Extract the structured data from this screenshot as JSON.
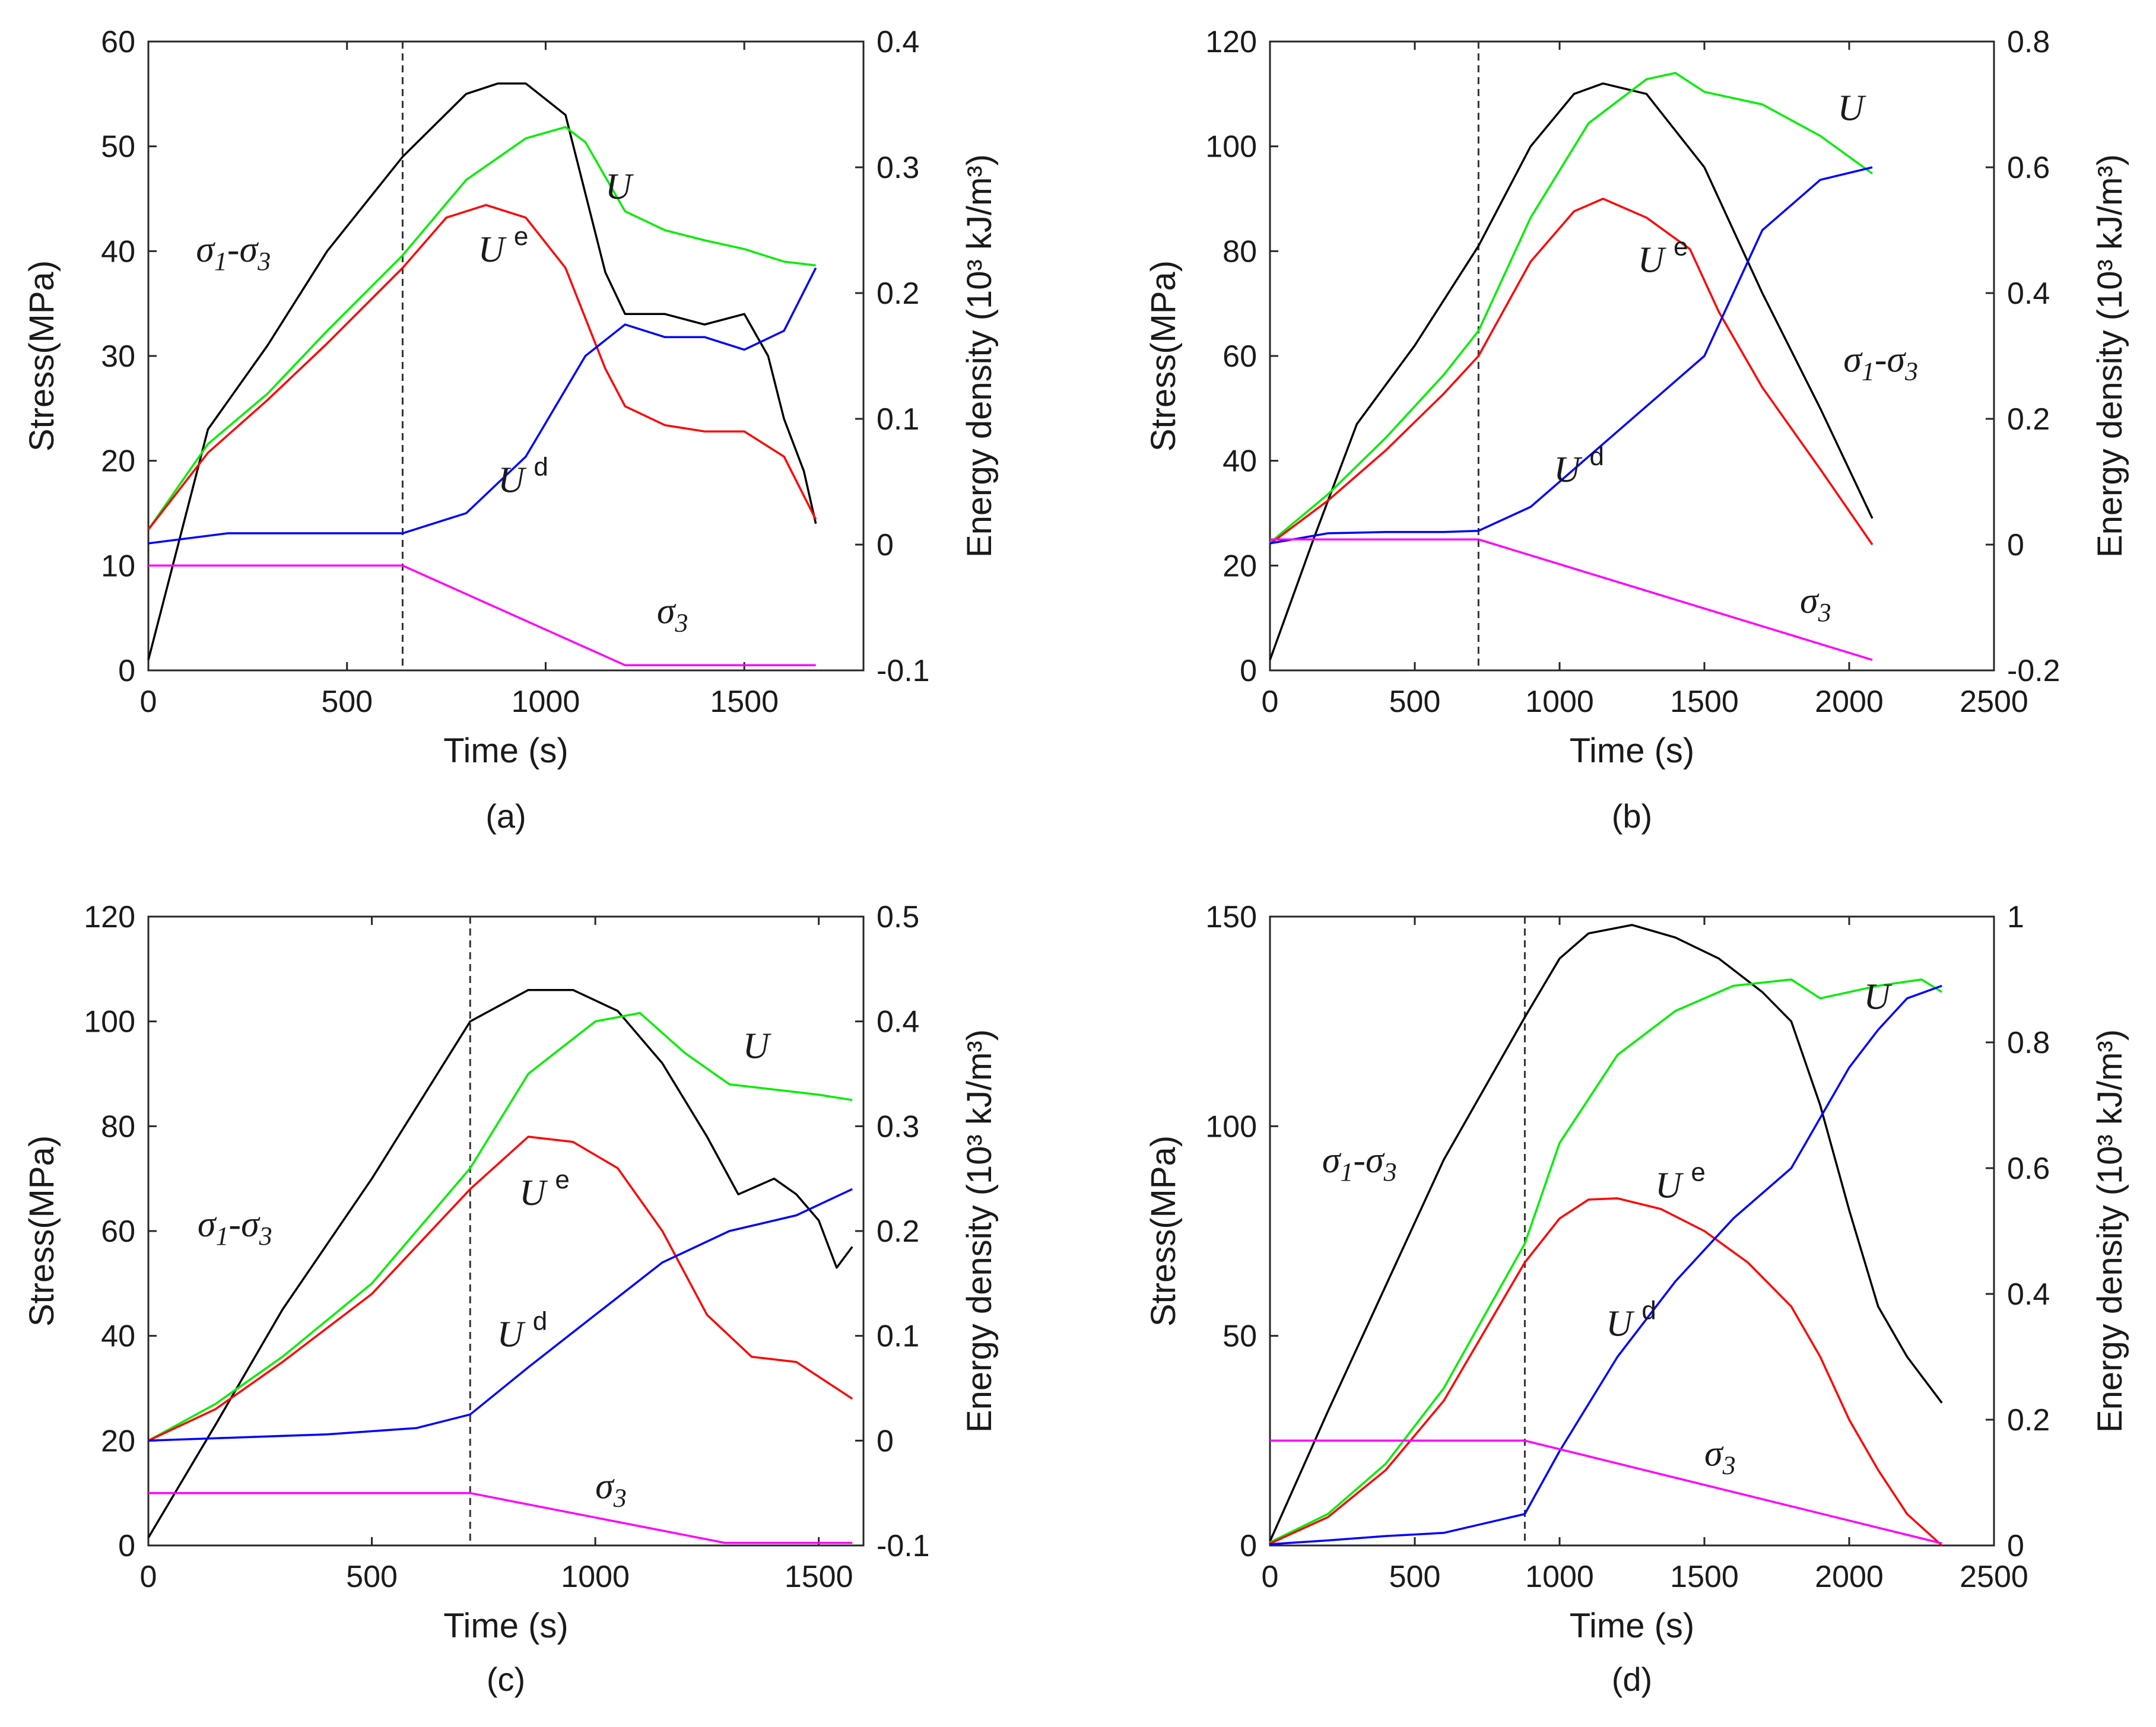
{
  "colors": {
    "stress": "#000000",
    "U": "#00ee00",
    "Ue": "#ff0000",
    "Ud": "#0000ff",
    "sigma3": "#ff00ff",
    "dashed": "#333333"
  },
  "chart_data": [
    {
      "type": "line",
      "label": "(a)",
      "xlabel": "Time (s)",
      "ylabel_left": "Stress(MPa)",
      "ylabel_right": "Energy density (10³ kJ/m³)",
      "xlim": [
        0,
        1800
      ],
      "xticks": [
        0,
        500,
        1000,
        1500
      ],
      "ylim_left": [
        0,
        60
      ],
      "yticks_left": [
        0,
        10,
        20,
        30,
        40,
        50,
        60
      ],
      "ylim_right": [
        -0.1,
        0.4
      ],
      "yticks_right": [
        "-0.1",
        "0",
        "0.1",
        "0.2",
        "0.3",
        "0.4"
      ],
      "vline_x": 640,
      "annotations": [
        {
          "name": "U",
          "base": "U",
          "sup": "",
          "x": 1150,
          "y": 45
        },
        {
          "name": "Ue",
          "base": "U",
          "sup": "e",
          "x": 830,
          "y": 39
        },
        {
          "name": "Ud",
          "base": "U",
          "sup": "d",
          "x": 880,
          "y": 17
        },
        {
          "name": "sigma1-sigma3",
          "base": "σ",
          "sub": "1",
          "mid": "-σ",
          "sub2": "3",
          "x": 120,
          "y": 39
        },
        {
          "name": "sigma3",
          "base": "σ",
          "sub": "3",
          "x": 1280,
          "y": 4.5
        }
      ],
      "series": [
        {
          "name": "σ1-σ3",
          "axis": "left",
          "color_key": "stress",
          "x": [
            0,
            150,
            300,
            450,
            640,
            800,
            880,
            950,
            1050,
            1150,
            1200,
            1300,
            1400,
            1500,
            1560,
            1600,
            1650,
            1680
          ],
          "y": [
            1,
            23,
            31,
            40,
            49,
            55,
            56,
            56,
            53,
            38,
            34,
            34,
            33,
            34,
            30,
            24,
            19,
            14
          ]
        },
        {
          "name": "U",
          "axis": "right",
          "color_key": "U",
          "x": [
            0,
            150,
            300,
            450,
            640,
            800,
            950,
            1050,
            1100,
            1200,
            1300,
            1400,
            1500,
            1600,
            1680
          ],
          "y": [
            0.012,
            0.08,
            0.12,
            0.17,
            0.23,
            0.29,
            0.323,
            0.332,
            0.32,
            0.265,
            0.25,
            0.242,
            0.235,
            0.225,
            0.222
          ]
        },
        {
          "name": "Ue",
          "axis": "right",
          "color_key": "Ue",
          "x": [
            0,
            150,
            300,
            450,
            640,
            750,
            850,
            950,
            1050,
            1150,
            1200,
            1300,
            1400,
            1500,
            1600,
            1680
          ],
          "y": [
            0.012,
            0.073,
            0.115,
            0.16,
            0.22,
            0.26,
            0.27,
            0.26,
            0.22,
            0.14,
            0.11,
            0.095,
            0.09,
            0.09,
            0.07,
            0.02
          ]
        },
        {
          "name": "Ud",
          "axis": "right",
          "color_key": "Ud",
          "x": [
            0,
            200,
            400,
            640,
            800,
            950,
            1100,
            1200,
            1300,
            1400,
            1500,
            1600,
            1680
          ],
          "y": [
            0.001,
            0.009,
            0.009,
            0.009,
            0.025,
            0.07,
            0.15,
            0.175,
            0.165,
            0.165,
            0.155,
            0.17,
            0.22
          ]
        },
        {
          "name": "σ3",
          "axis": "left",
          "color_key": "sigma3",
          "x": [
            0,
            640,
            1200,
            1680
          ],
          "y": [
            10,
            10,
            0.5,
            0.5
          ]
        }
      ]
    },
    {
      "type": "line",
      "label": "(b)",
      "xlabel": "Time (s)",
      "ylabel_left": "Stress(MPa)",
      "ylabel_right": "Energy density (10³ kJ/m³)",
      "xlim": [
        0,
        2500
      ],
      "xticks": [
        0,
        500,
        1000,
        1500,
        2000,
        2500
      ],
      "ylim_left": [
        0,
        120
      ],
      "yticks_left": [
        0,
        20,
        40,
        60,
        80,
        100,
        120
      ],
      "ylim_right": [
        -0.2,
        0.8
      ],
      "yticks_right": [
        "-0.2",
        "0",
        "0.2",
        "0.4",
        "0.6",
        "0.8"
      ],
      "vline_x": 720,
      "annotations": [
        {
          "name": "U",
          "base": "U",
          "sup": "",
          "x": 1960,
          "y": 105
        },
        {
          "name": "Ue",
          "base": "U",
          "sup": "e",
          "x": 1270,
          "y": 76
        },
        {
          "name": "Ud",
          "base": "U",
          "sup": "d",
          "x": 980,
          "y": 36
        },
        {
          "name": "sigma1-sigma3",
          "base": "σ",
          "sub": "1",
          "mid": "-σ",
          "sub2": "3",
          "x": 1980,
          "y": 57
        },
        {
          "name": "sigma3",
          "base": "σ",
          "sub": "3",
          "x": 1830,
          "y": 11
        }
      ],
      "series": [
        {
          "name": "σ1-σ3",
          "axis": "left",
          "color_key": "stress",
          "x": [
            0,
            150,
            300,
            500,
            720,
            900,
            1050,
            1150,
            1300,
            1500,
            1700,
            1900,
            2080
          ],
          "y": [
            2,
            25,
            47,
            62,
            81,
            100,
            110,
            112,
            110,
            96,
            72,
            50,
            29
          ]
        },
        {
          "name": "U",
          "axis": "right",
          "color_key": "U",
          "x": [
            0,
            200,
            400,
            600,
            720,
            900,
            1100,
            1300,
            1400,
            1500,
            1700,
            1900,
            2080
          ],
          "y": [
            0.003,
            0.08,
            0.17,
            0.27,
            0.34,
            0.52,
            0.67,
            0.74,
            0.75,
            0.72,
            0.7,
            0.65,
            0.59
          ]
        },
        {
          "name": "Ue",
          "axis": "right",
          "color_key": "Ue",
          "x": [
            0,
            200,
            400,
            600,
            720,
            900,
            1050,
            1150,
            1300,
            1450,
            1550,
            1700,
            1900,
            2080
          ],
          "y": [
            0.001,
            0.07,
            0.15,
            0.24,
            0.3,
            0.45,
            0.53,
            0.55,
            0.52,
            0.47,
            0.37,
            0.25,
            0.12,
            0.0
          ]
        },
        {
          "name": "Ud",
          "axis": "right",
          "color_key": "Ud",
          "x": [
            0,
            200,
            400,
            600,
            720,
            900,
            1100,
            1300,
            1500,
            1600,
            1700,
            1900,
            2080
          ],
          "y": [
            0.002,
            0.018,
            0.02,
            0.02,
            0.022,
            0.06,
            0.14,
            0.22,
            0.3,
            0.4,
            0.5,
            0.58,
            0.6
          ]
        },
        {
          "name": "σ3",
          "axis": "left",
          "color_key": "sigma3",
          "x": [
            0,
            720,
            2080
          ],
          "y": [
            25,
            25,
            2
          ]
        }
      ]
    },
    {
      "type": "line",
      "label": "(c)",
      "xlabel": "Time (s)",
      "ylabel_left": "Stress(MPa)",
      "ylabel_right": "Energy density (10³ kJ/m³)",
      "xlim": [
        0,
        1600
      ],
      "xticks": [
        0,
        500,
        1000,
        1500
      ],
      "ylim_left": [
        0,
        120
      ],
      "yticks_left": [
        0,
        20,
        40,
        60,
        80,
        100,
        120
      ],
      "ylim_right": [
        -0.1,
        0.5
      ],
      "yticks_right": [
        "-0.1",
        "0",
        "0.1",
        "0.2",
        "0.3",
        "0.4",
        "0.5"
      ],
      "vline_x": 720,
      "annotations": [
        {
          "name": "U",
          "base": "U",
          "sup": "",
          "x": 1330,
          "y": 93
        },
        {
          "name": "Ue",
          "base": "U",
          "sup": "e",
          "x": 830,
          "y": 65
        },
        {
          "name": "Ud",
          "base": "U",
          "sup": "d",
          "x": 780,
          "y": 38
        },
        {
          "name": "sigma1-sigma3",
          "base": "σ",
          "sub": "1",
          "mid": "-σ",
          "sub2": "3",
          "x": 110,
          "y": 59
        },
        {
          "name": "sigma3",
          "base": "σ",
          "sub": "3",
          "x": 1000,
          "y": 9
        }
      ],
      "series": [
        {
          "name": "σ1-σ3",
          "axis": "left",
          "color_key": "stress",
          "x": [
            0,
            150,
            300,
            500,
            720,
            850,
            950,
            1050,
            1150,
            1250,
            1320,
            1400,
            1450,
            1500,
            1540,
            1575
          ],
          "y": [
            1.5,
            23,
            45,
            70,
            100,
            106,
            106,
            102,
            92,
            78,
            67,
            70,
            67,
            62,
            53,
            57
          ]
        },
        {
          "name": "U",
          "axis": "right",
          "color_key": "U",
          "x": [
            0,
            150,
            300,
            500,
            720,
            850,
            1000,
            1100,
            1200,
            1300,
            1400,
            1500,
            1575
          ],
          "y": [
            0,
            0.035,
            0.08,
            0.15,
            0.26,
            0.35,
            0.4,
            0.408,
            0.37,
            0.34,
            0.335,
            0.33,
            0.325
          ]
        },
        {
          "name": "Ue",
          "axis": "right",
          "color_key": "Ue",
          "x": [
            0,
            150,
            300,
            500,
            720,
            850,
            950,
            1050,
            1150,
            1250,
            1350,
            1450,
            1575
          ],
          "y": [
            0,
            0.03,
            0.075,
            0.14,
            0.24,
            0.29,
            0.285,
            0.26,
            0.2,
            0.12,
            0.08,
            0.075,
            0.04
          ]
        },
        {
          "name": "Ud",
          "axis": "right",
          "color_key": "Ud",
          "x": [
            0,
            200,
            400,
            600,
            720,
            850,
            1000,
            1150,
            1300,
            1450,
            1575
          ],
          "y": [
            0,
            0.003,
            0.006,
            0.012,
            0.025,
            0.07,
            0.12,
            0.17,
            0.2,
            0.215,
            0.24
          ]
        },
        {
          "name": "σ3",
          "axis": "left",
          "color_key": "sigma3",
          "x": [
            0,
            720,
            1290,
            1575
          ],
          "y": [
            10,
            10,
            0.5,
            0.5
          ]
        }
      ]
    },
    {
      "type": "line",
      "label": "(d)",
      "xlabel": "Time (s)",
      "ylabel_left": "Stress(MPa)",
      "ylabel_right": "Energy density (10³ kJ/m³)",
      "xlim": [
        0,
        2500
      ],
      "xticks": [
        0,
        500,
        1000,
        1500,
        2000,
        2500
      ],
      "ylim_left": [
        0,
        150
      ],
      "yticks_left": [
        0,
        50,
        100,
        150
      ],
      "ylim_right": [
        0,
        1
      ],
      "yticks_right": [
        "0",
        "0.2",
        "0.4",
        "0.6",
        "0.8",
        "1"
      ],
      "vline_x": 880,
      "annotations": [
        {
          "name": "U",
          "base": "U",
          "sup": "",
          "x": 2050,
          "y": 128
        },
        {
          "name": "Ue",
          "base": "U",
          "sup": "e",
          "x": 1330,
          "y": 83
        },
        {
          "name": "Ud",
          "base": "U",
          "sup": "d",
          "x": 1160,
          "y": 50
        },
        {
          "name": "sigma1-sigma3",
          "base": "σ",
          "sub": "1",
          "mid": "-σ",
          "sub2": "3",
          "x": 180,
          "y": 89
        },
        {
          "name": "sigma3",
          "base": "σ",
          "sub": "3",
          "x": 1500,
          "y": 19
        }
      ],
      "series": [
        {
          "name": "σ1-σ3",
          "axis": "left",
          "color_key": "stress",
          "x": [
            0,
            200,
            400,
            600,
            880,
            1000,
            1100,
            1250,
            1400,
            1550,
            1700,
            1800,
            1900,
            2000,
            2100,
            2200,
            2320
          ],
          "y": [
            1,
            32,
            62,
            92,
            126,
            140,
            146,
            148,
            145,
            140,
            132,
            125,
            105,
            80,
            57,
            45,
            34
          ]
        },
        {
          "name": "U",
          "axis": "right",
          "color_key": "U",
          "x": [
            0,
            200,
            400,
            600,
            880,
            1000,
            1200,
            1400,
            1600,
            1800,
            1900,
            2000,
            2100,
            2250,
            2320
          ],
          "y": [
            0.005,
            0.05,
            0.13,
            0.25,
            0.48,
            0.64,
            0.78,
            0.85,
            0.89,
            0.9,
            0.87,
            0.88,
            0.89,
            0.9,
            0.88
          ]
        },
        {
          "name": "Ue",
          "axis": "right",
          "color_key": "Ue",
          "x": [
            0,
            200,
            400,
            600,
            880,
            1000,
            1100,
            1200,
            1350,
            1500,
            1650,
            1800,
            1900,
            2000,
            2100,
            2200,
            2320
          ],
          "y": [
            0.003,
            0.045,
            0.12,
            0.23,
            0.45,
            0.52,
            0.55,
            0.552,
            0.535,
            0.5,
            0.45,
            0.38,
            0.3,
            0.2,
            0.12,
            0.05,
            0.0
          ]
        },
        {
          "name": "Ud",
          "axis": "right",
          "color_key": "Ud",
          "x": [
            0,
            200,
            400,
            600,
            880,
            1000,
            1200,
            1400,
            1600,
            1800,
            1900,
            2000,
            2100,
            2200,
            2320
          ],
          "y": [
            0.002,
            0.008,
            0.015,
            0.02,
            0.05,
            0.15,
            0.3,
            0.42,
            0.52,
            0.6,
            0.68,
            0.76,
            0.82,
            0.87,
            0.89
          ]
        },
        {
          "name": "σ3",
          "axis": "left",
          "color_key": "sigma3",
          "x": [
            0,
            880,
            2320
          ],
          "y": [
            25,
            25,
            0.5
          ]
        }
      ]
    }
  ]
}
